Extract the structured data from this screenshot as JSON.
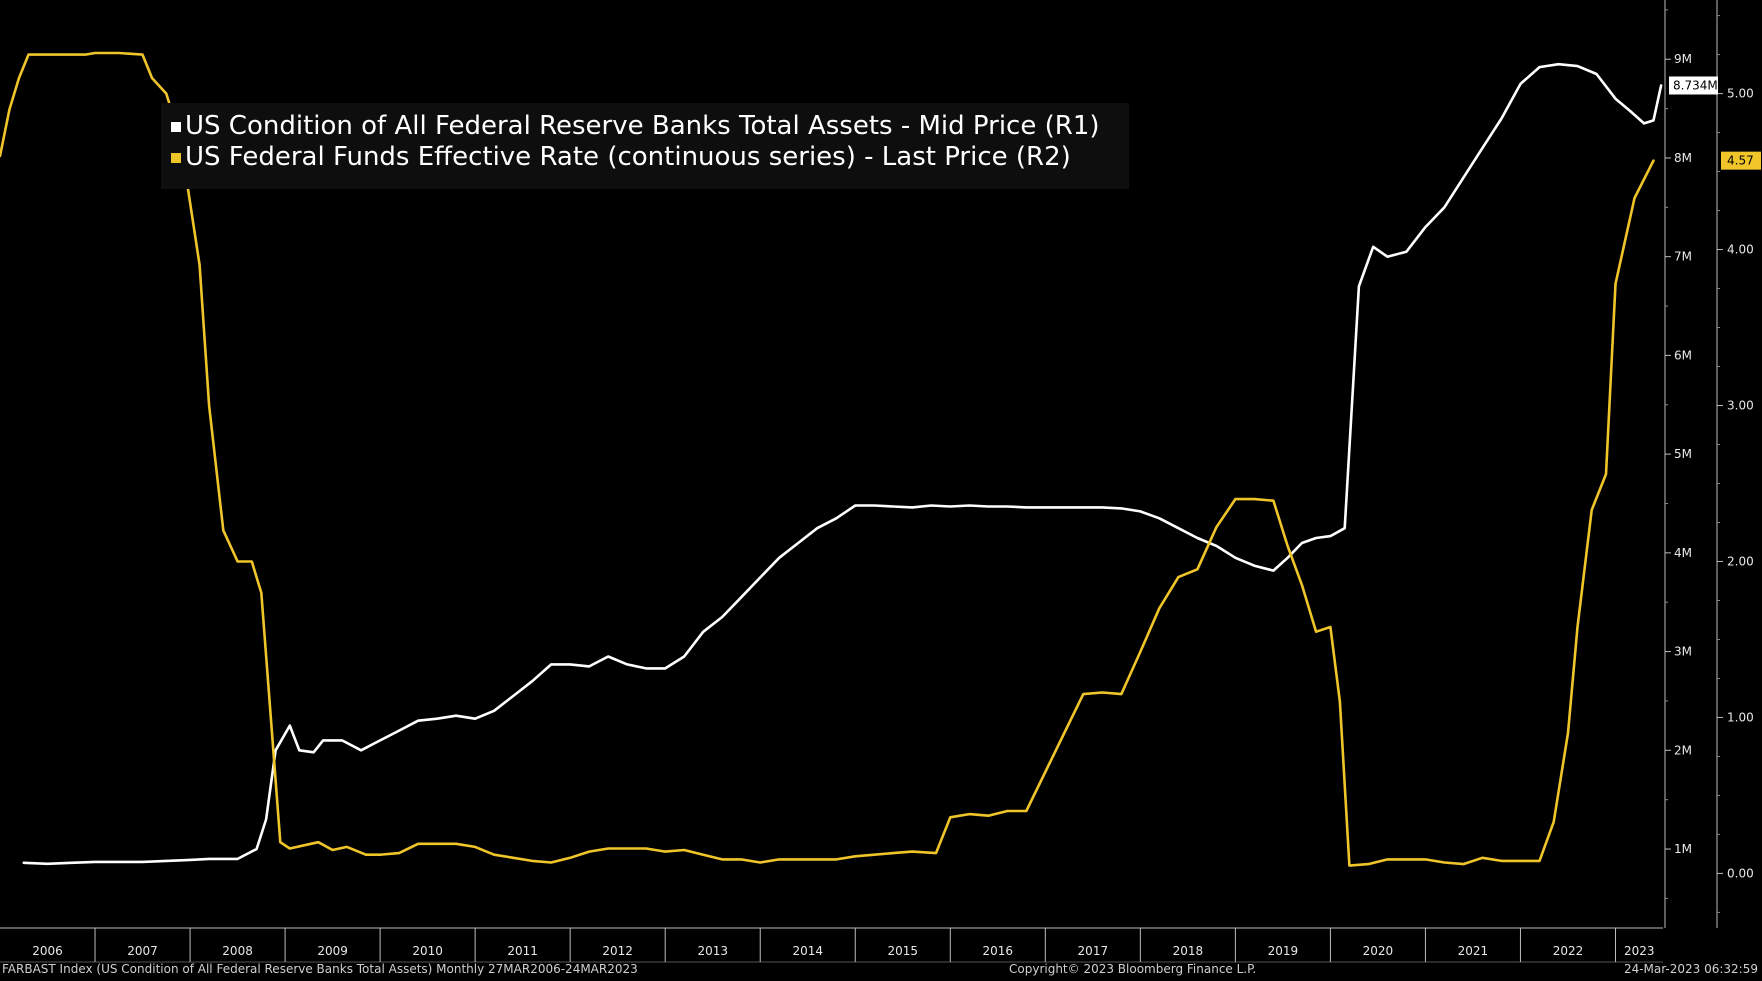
{
  "chart_data": {
    "type": "line",
    "x_categories": [
      "2006",
      "2007",
      "2008",
      "2009",
      "2010",
      "2011",
      "2012",
      "2013",
      "2014",
      "2015",
      "2016",
      "2017",
      "2018",
      "2019",
      "2020",
      "2021",
      "2022",
      "2023"
    ],
    "series": [
      {
        "name": "US Condition of All Federal Reserve Banks Total Assets - Mid Price (R1)",
        "axis": "R1",
        "color": "#ffffff",
        "points": [
          [
            2006.25,
            0.86
          ],
          [
            2006.5,
            0.85
          ],
          [
            2006.75,
            0.86
          ],
          [
            2007.0,
            0.87
          ],
          [
            2007.25,
            0.87
          ],
          [
            2007.5,
            0.87
          ],
          [
            2007.75,
            0.88
          ],
          [
            2008.0,
            0.89
          ],
          [
            2008.2,
            0.9
          ],
          [
            2008.5,
            0.9
          ],
          [
            2008.7,
            1.0
          ],
          [
            2008.8,
            1.3
          ],
          [
            2008.9,
            2.0
          ],
          [
            2009.05,
            2.25
          ],
          [
            2009.15,
            2.0
          ],
          [
            2009.3,
            1.98
          ],
          [
            2009.4,
            2.1
          ],
          [
            2009.6,
            2.1
          ],
          [
            2009.8,
            2.0
          ],
          [
            2010.0,
            2.1
          ],
          [
            2010.2,
            2.2
          ],
          [
            2010.4,
            2.3
          ],
          [
            2010.6,
            2.32
          ],
          [
            2010.8,
            2.35
          ],
          [
            2011.0,
            2.32
          ],
          [
            2011.2,
            2.4
          ],
          [
            2011.4,
            2.55
          ],
          [
            2011.6,
            2.7
          ],
          [
            2011.8,
            2.87
          ],
          [
            2012.0,
            2.87
          ],
          [
            2012.2,
            2.85
          ],
          [
            2012.4,
            2.95
          ],
          [
            2012.6,
            2.87
          ],
          [
            2012.8,
            2.83
          ],
          [
            2013.0,
            2.83
          ],
          [
            2013.2,
            2.95
          ],
          [
            2013.4,
            3.2
          ],
          [
            2013.6,
            3.35
          ],
          [
            2013.8,
            3.55
          ],
          [
            2014.0,
            3.75
          ],
          [
            2014.2,
            3.95
          ],
          [
            2014.4,
            4.1
          ],
          [
            2014.6,
            4.25
          ],
          [
            2014.8,
            4.35
          ],
          [
            2015.0,
            4.48
          ],
          [
            2015.2,
            4.48
          ],
          [
            2015.4,
            4.47
          ],
          [
            2015.6,
            4.46
          ],
          [
            2015.8,
            4.48
          ],
          [
            2016.0,
            4.47
          ],
          [
            2016.2,
            4.48
          ],
          [
            2016.4,
            4.47
          ],
          [
            2016.6,
            4.47
          ],
          [
            2016.8,
            4.46
          ],
          [
            2017.0,
            4.46
          ],
          [
            2017.2,
            4.46
          ],
          [
            2017.4,
            4.46
          ],
          [
            2017.6,
            4.46
          ],
          [
            2017.8,
            4.45
          ],
          [
            2018.0,
            4.42
          ],
          [
            2018.2,
            4.35
          ],
          [
            2018.4,
            4.25
          ],
          [
            2018.6,
            4.15
          ],
          [
            2018.8,
            4.07
          ],
          [
            2019.0,
            3.95
          ],
          [
            2019.2,
            3.87
          ],
          [
            2019.4,
            3.82
          ],
          [
            2019.55,
            3.95
          ],
          [
            2019.7,
            4.1
          ],
          [
            2019.85,
            4.15
          ],
          [
            2020.0,
            4.17
          ],
          [
            2020.15,
            4.25
          ],
          [
            2020.3,
            6.7
          ],
          [
            2020.45,
            7.1
          ],
          [
            2020.6,
            7.0
          ],
          [
            2020.8,
            7.05
          ],
          [
            2021.0,
            7.3
          ],
          [
            2021.2,
            7.5
          ],
          [
            2021.4,
            7.8
          ],
          [
            2021.6,
            8.1
          ],
          [
            2021.8,
            8.4
          ],
          [
            2022.0,
            8.75
          ],
          [
            2022.2,
            8.92
          ],
          [
            2022.4,
            8.95
          ],
          [
            2022.6,
            8.93
          ],
          [
            2022.8,
            8.85
          ],
          [
            2023.0,
            8.6
          ],
          [
            2023.15,
            8.48
          ],
          [
            2023.3,
            8.35
          ],
          [
            2023.4,
            8.38
          ],
          [
            2023.48,
            8.734
          ]
        ]
      },
      {
        "name": "US Federal Funds Effective Rate (continuous series) - Last Price (R2)",
        "axis": "R2",
        "color": "#f0c52a",
        "points": [
          [
            2006.0,
            4.6
          ],
          [
            2006.1,
            4.9
          ],
          [
            2006.2,
            5.1
          ],
          [
            2006.3,
            5.25
          ],
          [
            2006.5,
            5.25
          ],
          [
            2006.7,
            5.25
          ],
          [
            2006.9,
            5.25
          ],
          [
            2007.0,
            5.26
          ],
          [
            2007.25,
            5.26
          ],
          [
            2007.5,
            5.25
          ],
          [
            2007.6,
            5.1
          ],
          [
            2007.75,
            5.0
          ],
          [
            2007.9,
            4.7
          ],
          [
            2008.0,
            4.3
          ],
          [
            2008.1,
            3.9
          ],
          [
            2008.2,
            3.0
          ],
          [
            2008.35,
            2.2
          ],
          [
            2008.5,
            2.0
          ],
          [
            2008.65,
            2.0
          ],
          [
            2008.75,
            1.8
          ],
          [
            2008.85,
            1.0
          ],
          [
            2008.95,
            0.2
          ],
          [
            2009.05,
            0.16
          ],
          [
            2009.2,
            0.18
          ],
          [
            2009.35,
            0.2
          ],
          [
            2009.5,
            0.15
          ],
          [
            2009.65,
            0.17
          ],
          [
            2009.85,
            0.12
          ],
          [
            2010.0,
            0.12
          ],
          [
            2010.2,
            0.13
          ],
          [
            2010.4,
            0.19
          ],
          [
            2010.6,
            0.19
          ],
          [
            2010.8,
            0.19
          ],
          [
            2011.0,
            0.17
          ],
          [
            2011.2,
            0.12
          ],
          [
            2011.4,
            0.1
          ],
          [
            2011.6,
            0.08
          ],
          [
            2011.8,
            0.07
          ],
          [
            2012.0,
            0.1
          ],
          [
            2012.2,
            0.14
          ],
          [
            2012.4,
            0.16
          ],
          [
            2012.6,
            0.16
          ],
          [
            2012.8,
            0.16
          ],
          [
            2013.0,
            0.14
          ],
          [
            2013.2,
            0.15
          ],
          [
            2013.4,
            0.12
          ],
          [
            2013.6,
            0.09
          ],
          [
            2013.8,
            0.09
          ],
          [
            2014.0,
            0.07
          ],
          [
            2014.2,
            0.09
          ],
          [
            2014.4,
            0.09
          ],
          [
            2014.6,
            0.09
          ],
          [
            2014.8,
            0.09
          ],
          [
            2015.0,
            0.11
          ],
          [
            2015.2,
            0.12
          ],
          [
            2015.4,
            0.13
          ],
          [
            2015.6,
            0.14
          ],
          [
            2015.85,
            0.13
          ],
          [
            2016.0,
            0.36
          ],
          [
            2016.2,
            0.38
          ],
          [
            2016.4,
            0.37
          ],
          [
            2016.6,
            0.4
          ],
          [
            2016.8,
            0.4
          ],
          [
            2017.0,
            0.65
          ],
          [
            2017.2,
            0.9
          ],
          [
            2017.4,
            1.15
          ],
          [
            2017.6,
            1.16
          ],
          [
            2017.8,
            1.15
          ],
          [
            2018.0,
            1.42
          ],
          [
            2018.2,
            1.7
          ],
          [
            2018.4,
            1.9
          ],
          [
            2018.6,
            1.95
          ],
          [
            2018.8,
            2.22
          ],
          [
            2019.0,
            2.4
          ],
          [
            2019.2,
            2.4
          ],
          [
            2019.4,
            2.39
          ],
          [
            2019.55,
            2.1
          ],
          [
            2019.7,
            1.85
          ],
          [
            2019.85,
            1.55
          ],
          [
            2020.0,
            1.58
          ],
          [
            2020.1,
            1.1
          ],
          [
            2020.2,
            0.05
          ],
          [
            2020.4,
            0.06
          ],
          [
            2020.6,
            0.09
          ],
          [
            2020.8,
            0.09
          ],
          [
            2021.0,
            0.09
          ],
          [
            2021.2,
            0.07
          ],
          [
            2021.4,
            0.06
          ],
          [
            2021.6,
            0.1
          ],
          [
            2021.8,
            0.08
          ],
          [
            2022.0,
            0.08
          ],
          [
            2022.2,
            0.08
          ],
          [
            2022.35,
            0.33
          ],
          [
            2022.5,
            0.9
          ],
          [
            2022.6,
            1.58
          ],
          [
            2022.75,
            2.33
          ],
          [
            2022.9,
            2.56
          ],
          [
            2023.0,
            3.78
          ],
          [
            2023.2,
            4.33
          ],
          [
            2023.4,
            4.57
          ]
        ]
      }
    ],
    "r1_ticks": [
      "1M",
      "2M",
      "3M",
      "4M",
      "5M",
      "6M",
      "7M",
      "8M",
      "9M"
    ],
    "r2_ticks": [
      "0.00",
      "1.00",
      "2.00",
      "3.00",
      "4.00",
      "5.00"
    ],
    "r1_ylim": [
      0.2,
      9.6
    ],
    "r2_ylim": [
      -0.35,
      5.6
    ],
    "xlim": [
      2006.0,
      2023.5
    ],
    "last_values": {
      "r1": "8.734M",
      "r2": "4.57"
    },
    "grid": false,
    "legend_placement": "top-left"
  },
  "legend": {
    "items": [
      "US Condition of All Federal Reserve Banks Total Assets - Mid Price (R1)",
      "US Federal Funds Effective Rate (continuous series) - Last Price (R2)"
    ]
  },
  "footer": {
    "left": "FARBAST Index (US Condition of All Federal Reserve Banks Total Assets)  Monthly 27MAR2006-24MAR2023",
    "center": "Copyright© 2023 Bloomberg Finance L.P.",
    "right": "24-Mar-2023 06:32:59"
  },
  "colors": {
    "background": "#000000",
    "r1": "#ffffff",
    "r2": "#f0c52a"
  }
}
